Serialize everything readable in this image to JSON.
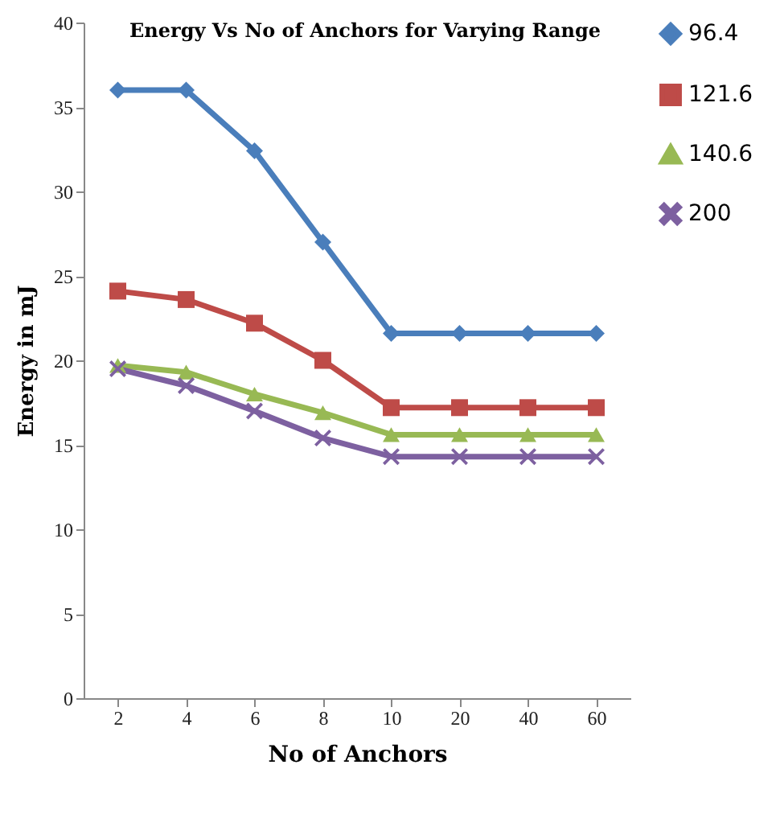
{
  "chart_data": {
    "type": "line",
    "title": "Energy  Vs No of Anchors  for Varying Range",
    "xlabel": "No of Anchors",
    "ylabel": "Energy in mJ",
    "categories": [
      "2",
      "4",
      "6",
      "8",
      "10",
      "20",
      "40",
      "60"
    ],
    "series": [
      {
        "name": "96.4",
        "color": "#4a7ebb",
        "marker": "diamond",
        "values": [
          36,
          36,
          32.4,
          27,
          21.6,
          21.6,
          21.6,
          21.6
        ]
      },
      {
        "name": "121.6",
        "color": "#be4b48",
        "marker": "square",
        "values": [
          24.1,
          23.6,
          22.2,
          20,
          17.2,
          17.2,
          17.2,
          17.2
        ]
      },
      {
        "name": "140.6",
        "color": "#98b954",
        "marker": "triangle",
        "values": [
          19.7,
          19.3,
          18,
          16.9,
          15.6,
          15.6,
          15.6,
          15.6
        ]
      },
      {
        "name": "200",
        "color": "#7d60a0",
        "marker": "cross",
        "values": [
          19.5,
          18.5,
          17,
          15.4,
          14.3,
          14.3,
          14.3,
          14.3
        ]
      }
    ],
    "ylim": [
      0,
      40
    ],
    "yticks": [
      0,
      5,
      10,
      15,
      20,
      25,
      30,
      35,
      40
    ],
    "grid": false,
    "legend": "right"
  }
}
